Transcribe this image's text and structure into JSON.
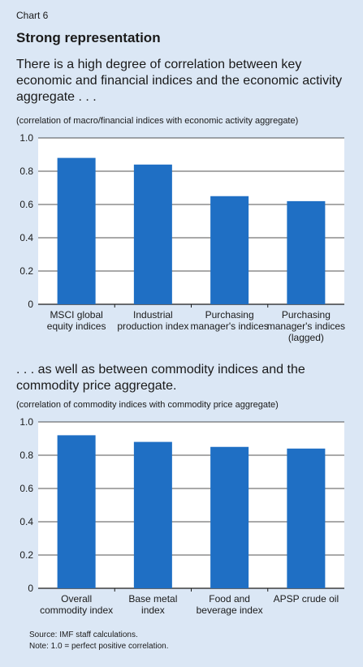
{
  "header": {
    "chart_label": "Chart 6",
    "title": "Strong representation",
    "subtitle_top": "There is a high degree of correlation between key economic and financial indices and the economic activity aggregate . . .",
    "unit_top": "(correlation of macro/financial indices with economic activity aggregate)",
    "subtitle_bottom": ". . . as well as between commodity indices and the commodity price aggregate.",
    "unit_bottom": "(correlation of commodity indices with commodity price aggregate)"
  },
  "footer": {
    "source": "Source: IMF staff calculations.",
    "note": "Note: 1.0 = perfect positive correlation."
  },
  "colors": {
    "bar": "#1f6fc4",
    "panel_background": "#dbe7f5",
    "plot_background": "#ffffff",
    "gridline": "#1a1a1a"
  },
  "chart_data": [
    {
      "type": "bar",
      "categories": [
        [
          "MSCI global",
          "equity indices"
        ],
        [
          "Industrial",
          "production index"
        ],
        [
          "Purchasing",
          "manager's indices"
        ],
        [
          "Purchasing",
          "manager's indices",
          "(lagged)"
        ]
      ],
      "values": [
        0.88,
        0.84,
        0.65,
        0.62
      ],
      "ylim": [
        0,
        1.0
      ],
      "yticks": [
        "0",
        "0.2",
        "0.4",
        "0.6",
        "0.8",
        "1.0"
      ],
      "grid": true
    },
    {
      "type": "bar",
      "categories": [
        [
          "Overall",
          "commodity index"
        ],
        [
          "Base metal",
          "index"
        ],
        [
          "Food and",
          "beverage index"
        ],
        [
          "APSP crude oil"
        ]
      ],
      "values": [
        0.92,
        0.88,
        0.85,
        0.84
      ],
      "ylim": [
        0,
        1.0
      ],
      "yticks": [
        "0",
        "0.2",
        "0.4",
        "0.6",
        "0.8",
        "1.0"
      ],
      "grid": true
    }
  ]
}
